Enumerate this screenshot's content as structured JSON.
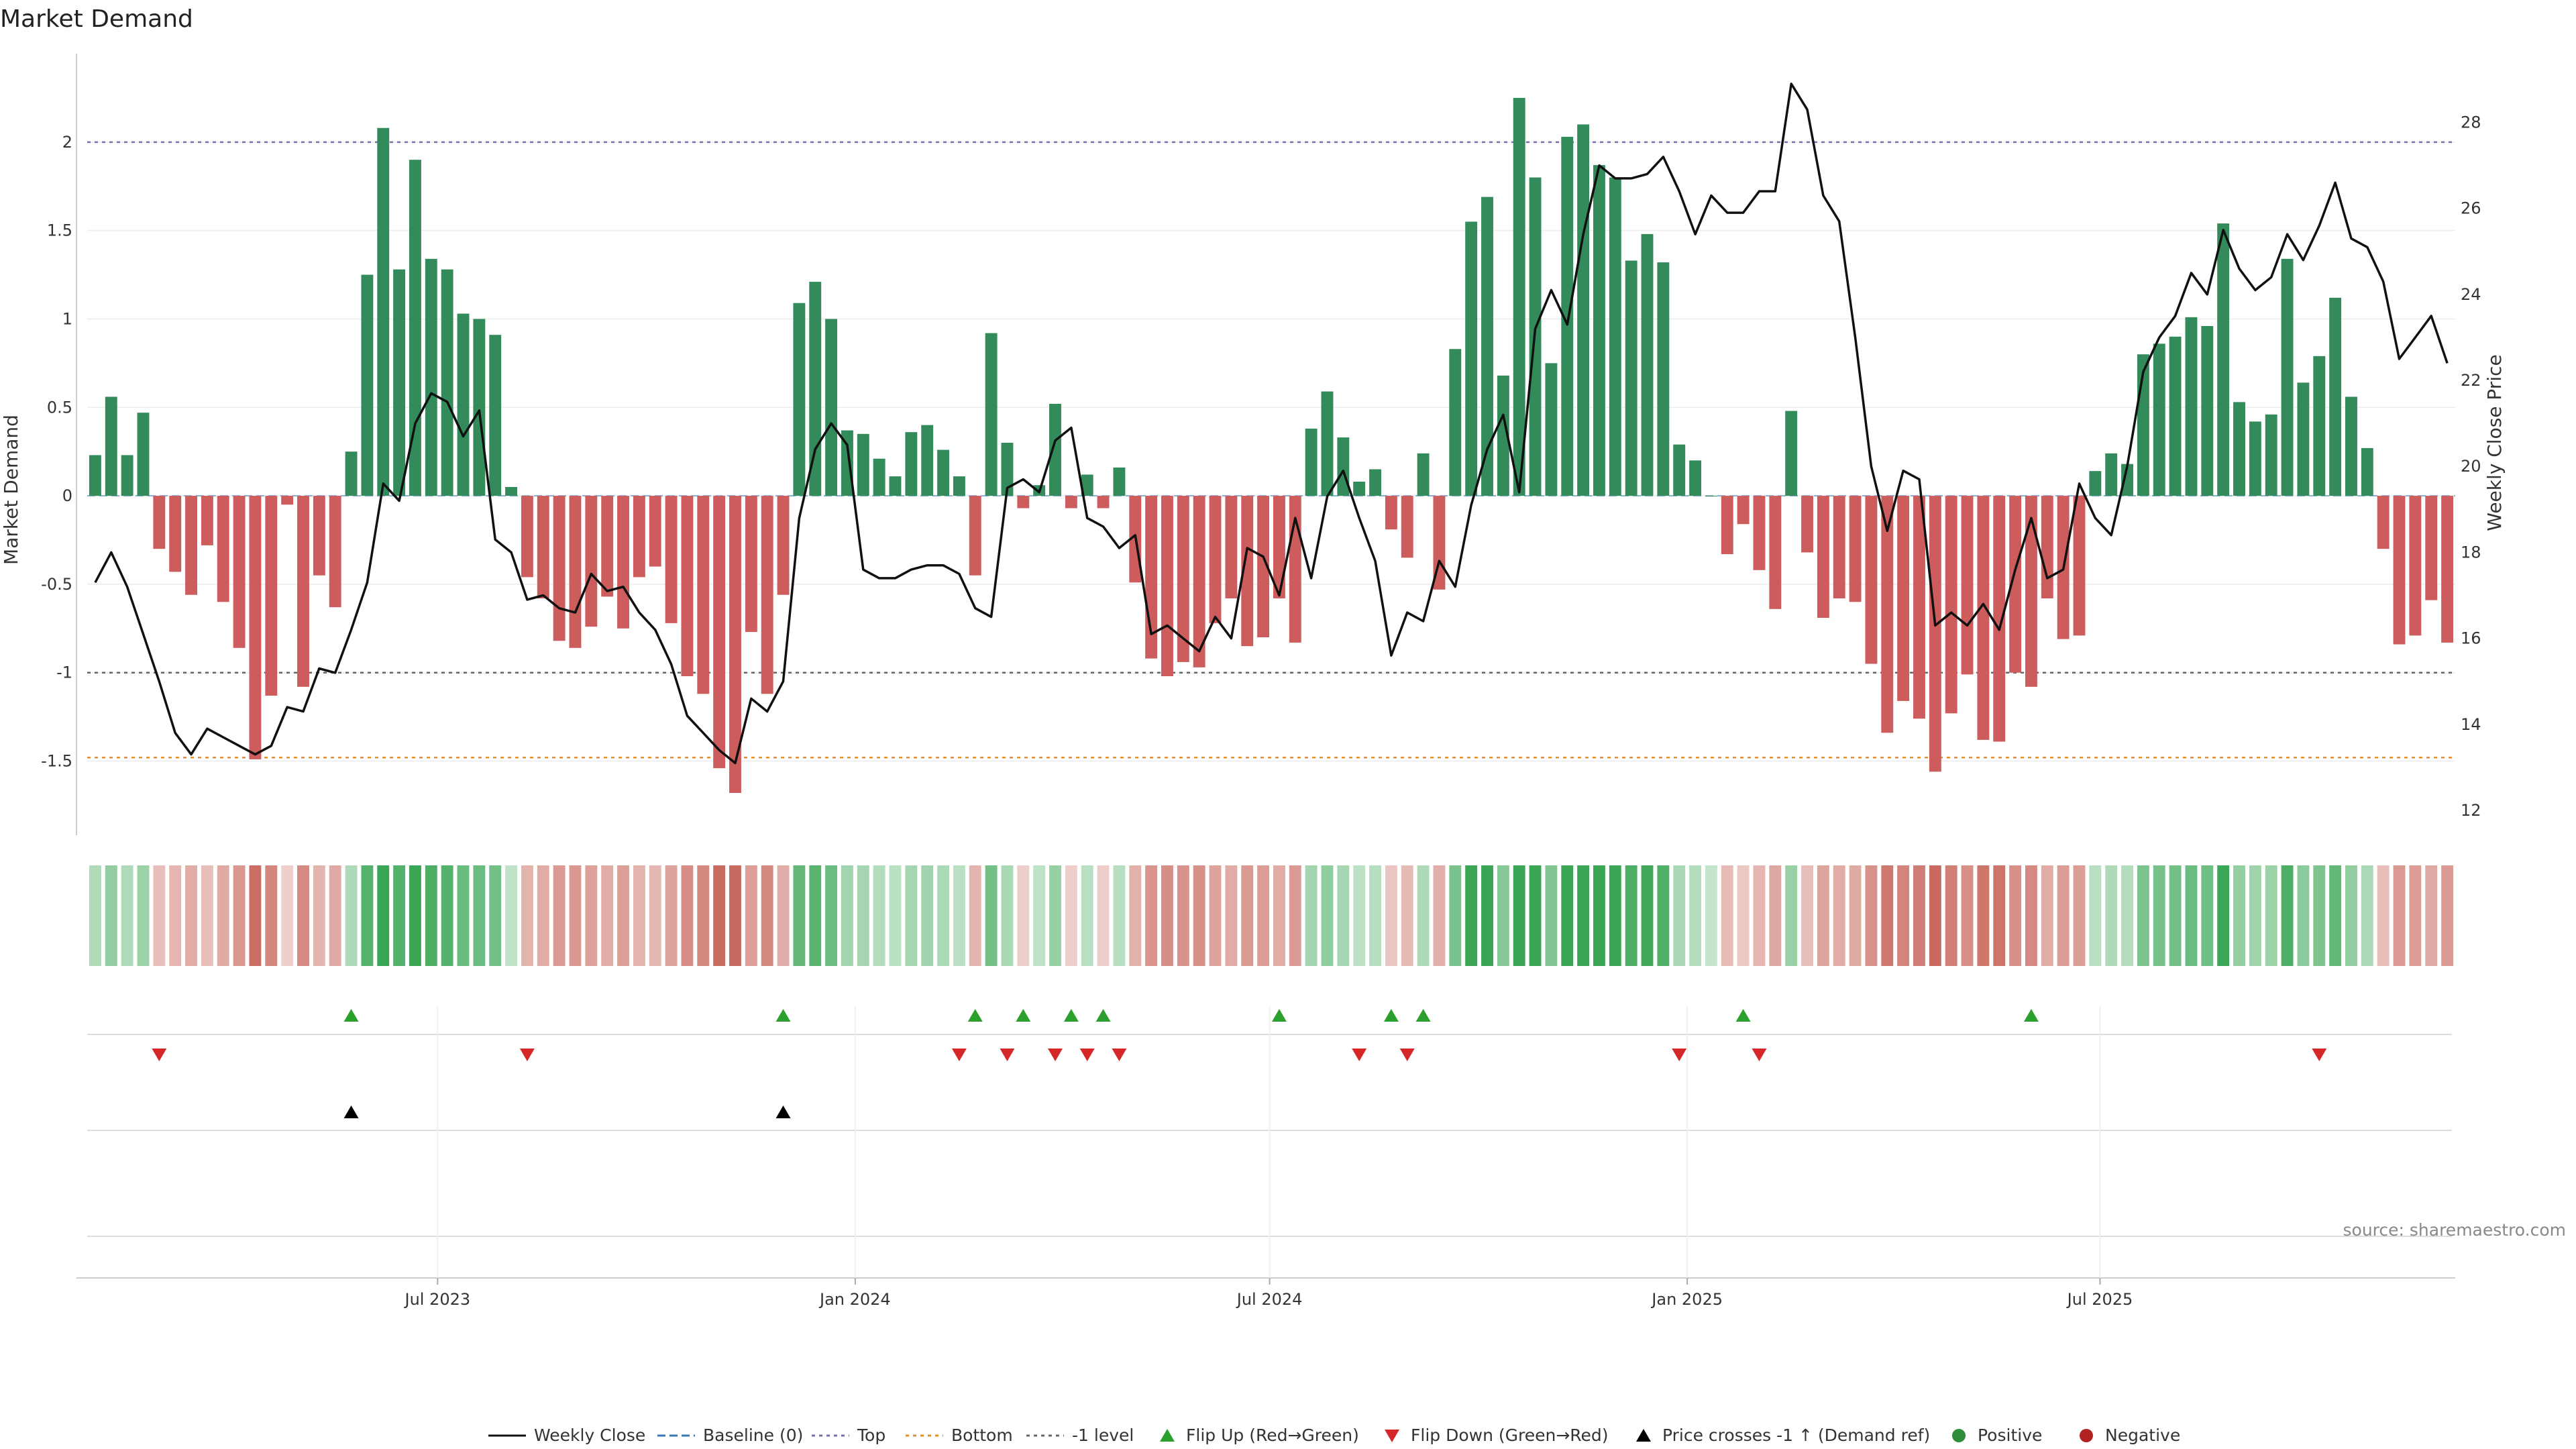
{
  "chart_data": {
    "type": "bar",
    "title": "Market Demand",
    "ylabel": "Market Demand",
    "y2label": "Weekly Close Price",
    "ylim": [
      -1.9,
      2.5
    ],
    "y2lim": [
      11.5,
      29.6
    ],
    "yticks": [
      {
        "v": 2,
        "label": "2"
      },
      {
        "v": 1.5,
        "label": "1.5"
      },
      {
        "v": 1,
        "label": "1"
      },
      {
        "v": 0.5,
        "label": "0.5"
      },
      {
        "v": 0,
        "label": "0"
      },
      {
        "v": -0.5,
        "label": "-0.5"
      },
      {
        "v": -1,
        "label": "-1"
      },
      {
        "v": -1.5,
        "label": "-1.5"
      }
    ],
    "y2ticks": [
      {
        "v": 28,
        "label": "28"
      },
      {
        "v": 26,
        "label": "26"
      },
      {
        "v": 24,
        "label": "24"
      },
      {
        "v": 22,
        "label": "22"
      },
      {
        "v": 20,
        "label": "20"
      },
      {
        "v": 18,
        "label": "18"
      },
      {
        "v": 16,
        "label": "16"
      },
      {
        "v": 14,
        "label": "14"
      },
      {
        "v": 12,
        "label": "12"
      }
    ],
    "xticks": [
      {
        "i": 21.4,
        "label": "Jul 2023"
      },
      {
        "i": 47.5,
        "label": "Jan 2024"
      },
      {
        "i": 73.4,
        "label": "Jul 2024"
      },
      {
        "i": 99.5,
        "label": "Jan 2025"
      },
      {
        "i": 125.3,
        "label": "Jul 2025"
      }
    ],
    "reference_lines": {
      "top": 2.0,
      "bottom": -1.48,
      "minus_one": -1.0
    },
    "demand": [
      0.23,
      0.56,
      0.23,
      0.47,
      -0.3,
      -0.43,
      -0.56,
      -0.28,
      -0.6,
      -0.86,
      -1.49,
      -1.13,
      -0.05,
      -1.08,
      -0.45,
      -0.63,
      0.25,
      1.25,
      2.08,
      1.28,
      1.9,
      1.34,
      1.28,
      1.03,
      1.0,
      0.91,
      0.05,
      -0.46,
      -0.58,
      -0.82,
      -0.86,
      -0.74,
      -0.57,
      -0.75,
      -0.46,
      -0.4,
      -0.72,
      -1.02,
      -1.12,
      -1.54,
      -1.68,
      -0.77,
      -1.12,
      -0.56,
      1.09,
      1.21,
      1.0,
      0.37,
      0.35,
      0.21,
      0.11,
      0.36,
      0.4,
      0.26,
      0.11,
      -0.45,
      0.92,
      0.3,
      -0.07,
      0.06,
      0.52,
      -0.07,
      0.12,
      -0.07,
      0.16,
      -0.49,
      -0.92,
      -1.02,
      -0.94,
      -0.97,
      -0.72,
      -0.58,
      -0.85,
      -0.8,
      -0.58,
      -0.83,
      0.38,
      0.59,
      0.33,
      0.08,
      0.15,
      -0.19,
      -0.35,
      0.24,
      -0.53,
      0.83,
      1.55,
      1.69,
      0.68,
      2.25,
      1.8,
      0.75,
      2.03,
      2.1,
      1.87,
      1.8,
      1.33,
      1.48,
      1.32,
      0.29,
      0.2,
      0.0,
      -0.33,
      -0.16,
      -0.42,
      -0.64,
      0.48,
      -0.32,
      -0.69,
      -0.58,
      -0.6,
      -0.95,
      -1.34,
      -1.16,
      -1.26,
      -1.56,
      -1.23,
      -1.01,
      -1.38,
      -1.39,
      -1.0,
      -1.08,
      -0.58,
      -0.81,
      -0.79,
      0.14,
      0.24,
      0.18,
      0.8,
      0.86,
      0.9,
      1.01,
      0.96,
      1.54,
      0.53,
      0.42,
      0.46,
      1.34,
      0.64,
      0.79,
      1.12,
      0.56,
      0.27,
      -0.3,
      -0.84,
      -0.79,
      -0.59,
      -0.83
    ],
    "weekly_close": [
      17.3,
      18.0,
      17.2,
      16.1,
      15.0,
      13.8,
      13.3,
      13.9,
      13.7,
      13.5,
      13.3,
      13.5,
      14.4,
      14.3,
      15.3,
      15.2,
      16.2,
      17.3,
      19.6,
      19.2,
      21.0,
      21.7,
      21.5,
      20.7,
      21.3,
      18.3,
      18.0,
      16.9,
      17.0,
      16.7,
      16.6,
      17.5,
      17.1,
      17.2,
      16.6,
      16.2,
      15.4,
      14.2,
      13.8,
      13.4,
      13.1,
      14.6,
      14.3,
      15.0,
      18.8,
      20.4,
      21.0,
      20.5,
      17.6,
      17.4,
      17.4,
      17.6,
      17.7,
      17.7,
      17.5,
      16.7,
      16.5,
      19.5,
      19.7,
      19.4,
      20.6,
      20.9,
      18.8,
      18.6,
      18.1,
      18.4,
      16.1,
      16.3,
      16.0,
      15.7,
      16.5,
      16.0,
      18.1,
      17.9,
      17.0,
      18.8,
      17.4,
      19.3,
      19.9,
      18.8,
      17.8,
      15.6,
      16.6,
      16.4,
      17.8,
      17.2,
      19.1,
      20.4,
      21.2,
      19.4,
      23.2,
      24.1,
      23.3,
      25.4,
      27.0,
      26.7,
      26.7,
      26.8,
      27.2,
      26.4,
      25.4,
      26.3,
      25.9,
      25.9,
      26.4,
      26.4,
      28.9,
      28.3,
      26.3,
      25.7,
      23.0,
      20.0,
      18.5,
      19.9,
      19.7,
      16.3,
      16.6,
      16.3,
      16.8,
      16.2,
      17.6,
      18.8,
      17.4,
      17.6,
      19.6,
      18.8,
      18.4,
      20.0,
      22.2,
      23.0,
      23.5,
      24.5,
      24.0,
      25.5,
      24.6,
      24.1,
      24.4,
      25.4,
      24.8,
      25.6,
      26.6,
      25.3,
      25.1,
      24.3,
      22.5,
      23.0,
      23.5,
      22.4
    ],
    "flip_up_idx": [
      16,
      43,
      55,
      58,
      61,
      63,
      74,
      81,
      83,
      103,
      121
    ],
    "flip_down_idx": [
      4,
      27,
      54,
      57,
      60,
      62,
      64,
      79,
      82,
      99,
      104,
      139
    ],
    "price_cross_idx": [
      16,
      43
    ],
    "legend": {
      "weekly_close": "Weekly Close",
      "baseline": "Baseline (0)",
      "top": "Top",
      "bottom": "Bottom",
      "minus_one": "-1 level",
      "flip_up": "Flip Up (Red→Green)",
      "flip_down": "Flip Down (Green→Red)",
      "price_cross": "Price crosses -1 ↑ (Demand ref)",
      "positive": "Positive",
      "negative": "Negative"
    },
    "legend_placement": "bottom-center",
    "source": "source: sharemaestro.com"
  },
  "colors": {
    "positive": "#338a5a",
    "negative": "#cd5c5c",
    "price": "#111111",
    "top": "#7b6fa8",
    "bottom": "#e0902a",
    "minus_one": "#666666",
    "baseline": "#3a78b5",
    "flip_up": "#2ca02c",
    "flip_down": "#d62728",
    "cross": "#000000",
    "legend_positive": "#2e8b3a",
    "legend_negative": "#b22222"
  }
}
